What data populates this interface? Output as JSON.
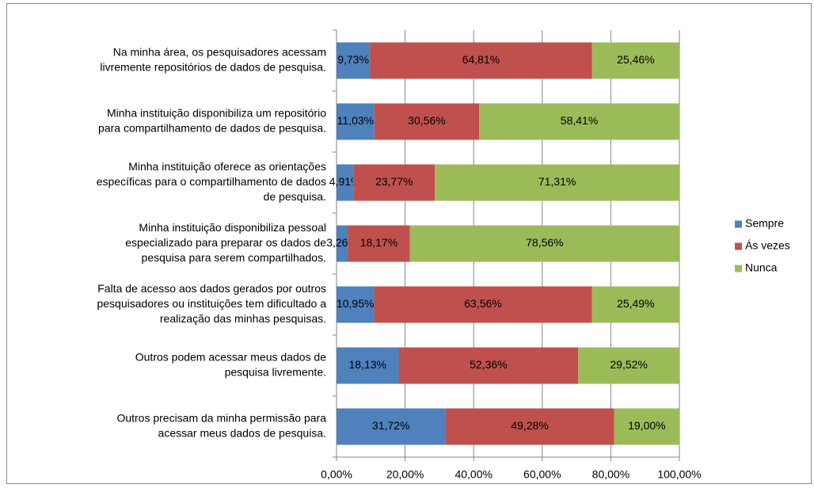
{
  "chart_data": {
    "type": "stacked-bar-horizontal",
    "categories": [
      [
        "Na minha área, os pesquisadores acessam",
        "livremente repositórios de dados de pesquisa."
      ],
      [
        "Minha instituição disponibiliza um repositório",
        "para compartilhamento de dados de pesquisa."
      ],
      [
        "Minha instituição oferece as orientações",
        "específicas para o compartilhamento de dados",
        "de pesquisa."
      ],
      [
        "Minha instituição disponibiliza pessoal",
        "especializado para preparar os dados de",
        "pesquisa para serem compartilhados."
      ],
      [
        "Falta de acesso aos dados gerados por outros",
        "pesquisadores ou instituições tem dificultado a",
        "realização das minhas pesquisas."
      ],
      [
        "Outros podem acessar meus dados de",
        "pesquisa livremente."
      ],
      [
        "Outros precisam da minha permissão para",
        "acessar meus dados de pesquisa."
      ]
    ],
    "series": [
      {
        "name": "Sempre",
        "color": "#4f81bd",
        "values": [
          9.73,
          11.03,
          4.91,
          3.26,
          10.95,
          18.13,
          31.72
        ],
        "value_labels": [
          "9,73%",
          "11,03%",
          "4,91%",
          "3,26%",
          "10,95%",
          "18,13%",
          "31,72%"
        ]
      },
      {
        "name": "Ás vezes",
        "color": "#c0504d",
        "values": [
          64.81,
          30.56,
          23.77,
          18.17,
          63.56,
          52.36,
          49.28
        ],
        "value_labels": [
          "64,81%",
          "30,56%",
          "23,77%",
          "18,17%",
          "63,56%",
          "52,36%",
          "49,28%"
        ]
      },
      {
        "name": "Nunca",
        "color": "#9bbb59",
        "values": [
          25.46,
          58.41,
          71.31,
          78.56,
          25.49,
          29.52,
          19.0
        ],
        "value_labels": [
          "25,46%",
          "58,41%",
          "71,31%",
          "78,56%",
          "25,49%",
          "29,52%",
          "19,00%"
        ]
      }
    ],
    "xlim": [
      0,
      100
    ],
    "xticks": [
      {
        "value": 0,
        "label": "0,00%"
      },
      {
        "value": 20,
        "label": "20,00%"
      },
      {
        "value": 40,
        "label": "40,00%"
      },
      {
        "value": 60,
        "label": "60,00%"
      },
      {
        "value": 80,
        "label": "80,00%"
      },
      {
        "value": 100,
        "label": "100,00%"
      }
    ],
    "grid": true,
    "legend": "right"
  }
}
